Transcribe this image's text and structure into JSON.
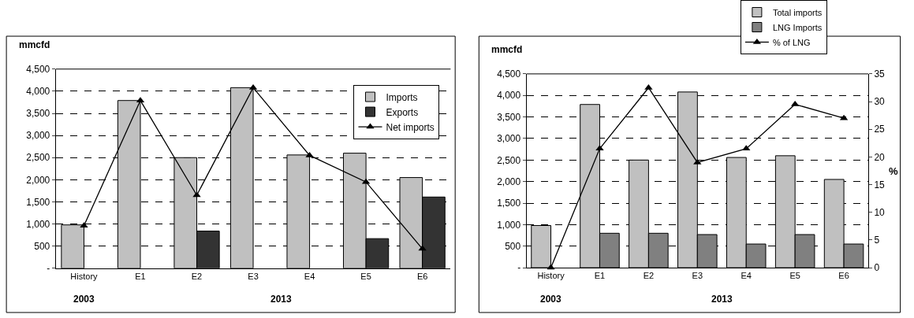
{
  "chart_data": [
    {
      "type": "bar",
      "ylabel": "mmcfd",
      "categories": [
        "History",
        "E1",
        "E2",
        "E3",
        "E4",
        "E5",
        "E6"
      ],
      "series": [
        {
          "name": "Imports",
          "color": "#c0c0c0",
          "values": [
            980,
            3790,
            2500,
            4080,
            2560,
            2600,
            2050
          ]
        },
        {
          "name": "Exports",
          "color": "#333333",
          "values": [
            null,
            null,
            840,
            null,
            null,
            670,
            1610
          ]
        },
        {
          "name": "Net imports",
          "type": "line",
          "color": "#000000",
          "marker": "triangle",
          "values": [
            960,
            3790,
            1650,
            4080,
            2550,
            1950,
            440
          ]
        }
      ],
      "ylim": [
        0,
        4500
      ],
      "yticks": [
        {
          "value": 0,
          "label": "-"
        },
        {
          "value": 500,
          "label": "500"
        },
        {
          "value": 1000,
          "label": "1,000"
        },
        {
          "value": 1500,
          "label": "1,500"
        },
        {
          "value": 2000,
          "label": "2,000"
        },
        {
          "value": 2500,
          "label": "2,500"
        },
        {
          "value": 3000,
          "label": "3,000"
        },
        {
          "value": 3500,
          "label": "3,500"
        },
        {
          "value": 4000,
          "label": "4,000"
        },
        {
          "value": 4500,
          "label": "4,500"
        }
      ],
      "grid": "y",
      "legend": "top right",
      "annotations": [
        "2003",
        "2013"
      ]
    },
    {
      "type": "bar",
      "ylabel": "mmcfd",
      "y2label": "%",
      "categories": [
        "History",
        "E1",
        "E2",
        "E3",
        "E4",
        "E5",
        "E6"
      ],
      "series": [
        {
          "name": "Total imports",
          "color": "#c0c0c0",
          "values": [
            980,
            3790,
            2500,
            4080,
            2560,
            2600,
            2050
          ]
        },
        {
          "name": "LNG Imports",
          "color": "#808080",
          "values": [
            null,
            800,
            800,
            770,
            550,
            770,
            550
          ]
        },
        {
          "name": "% of LNG",
          "type": "line",
          "axis": "y2",
          "color": "#000000",
          "marker": "triangle",
          "values": [
            0,
            21.5,
            32.5,
            19,
            21.5,
            29.5,
            27
          ]
        }
      ],
      "ylim": [
        0,
        4500
      ],
      "yticks": [
        {
          "value": 0,
          "label": "-"
        },
        {
          "value": 500,
          "label": "500"
        },
        {
          "value": 1000,
          "label": "1,000"
        },
        {
          "value": 1500,
          "label": "1,500"
        },
        {
          "value": 2000,
          "label": "2,000"
        },
        {
          "value": 2500,
          "label": "2,500"
        },
        {
          "value": 3000,
          "label": "3,000"
        },
        {
          "value": 3500,
          "label": "3,500"
        },
        {
          "value": 4000,
          "label": "4,000"
        },
        {
          "value": 4500,
          "label": "4,500"
        }
      ],
      "y2lim": [
        0,
        35
      ],
      "y2ticks": [
        0,
        5,
        10,
        15,
        20,
        25,
        30,
        35
      ],
      "grid": "y",
      "legend": "top right",
      "annotations": [
        "2003",
        "2013"
      ]
    }
  ]
}
